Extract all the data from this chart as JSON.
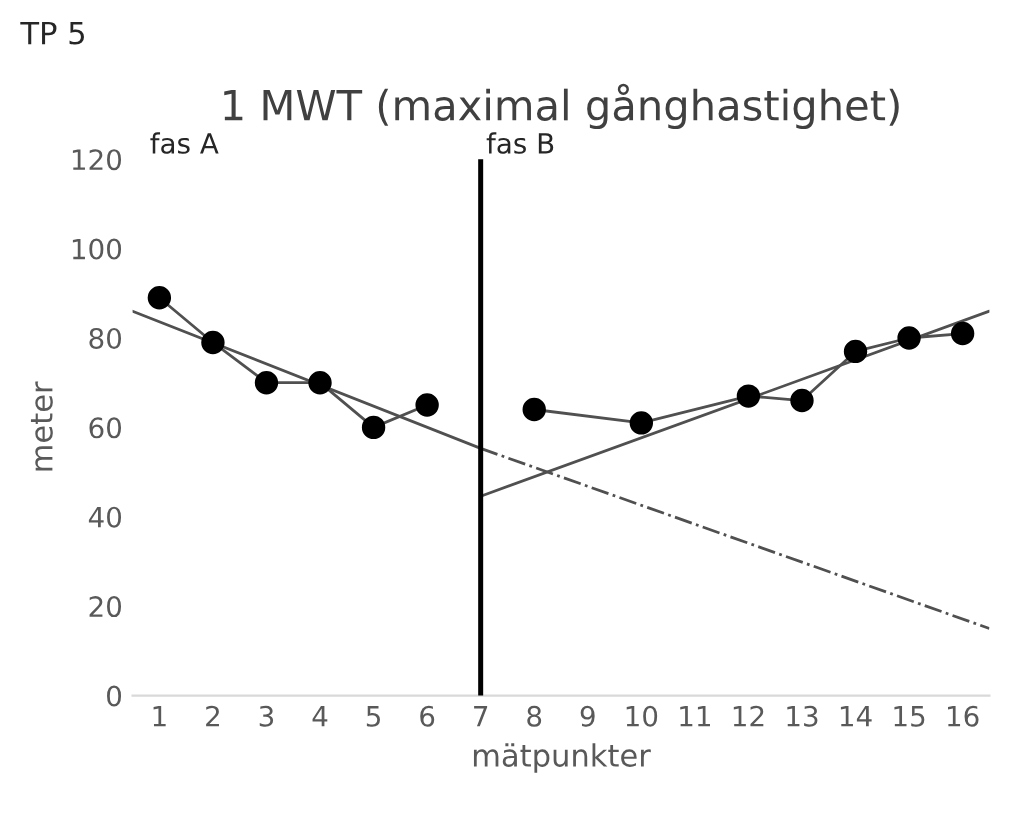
{
  "chart_data": {
    "type": "line",
    "title": "1 MWT (maximal gånghastighet)",
    "xlabel": "mätpunkter",
    "ylabel": "meter",
    "annotations": [
      "TP 5",
      "fas A"
    ],
    "series": [
      {
        "color": "#000000",
        "marker": "circle",
        "line_style": "solid",
        "x": [
          1,
          2,
          3,
          4,
          5,
          6
        ],
        "values": [
          89,
          79,
          70,
          70,
          60,
          65
        ]
      },
      {
        "color": "#000000",
        "marker": "circle",
        "line_style": "solid",
        "x": [
          8,
          10,
          12,
          13,
          14,
          15,
          16
        ],
        "values": [
          64,
          61,
          67,
          66,
          77,
          80,
          81
        ]
      },
      {
        "color": "#404040",
        "line_style": "solid",
        "x": [
          0.5,
          7
        ],
        "values": [
          86,
          55.3
        ]
      },
      {
        "color": "#404040",
        "line_style": "dashdot",
        "x": [
          7,
          16.5
        ],
        "values": [
          55.3,
          15
        ]
      },
      {
        "color": "#404040",
        "line_style": "solid",
        "x": [
          7,
          16.5
        ],
        "values": [
          44.6,
          86
        ]
      }
    ],
    "ref_lines": [
      {
        "axis": "x",
        "value": 7,
        "label": "fas B",
        "color": "#000000"
      }
    ],
    "xlim": [
      0.5,
      16.5
    ],
    "xticks": [
      1,
      2,
      3,
      4,
      5,
      6,
      7,
      8,
      9,
      10,
      11,
      12,
      13,
      14,
      15,
      16
    ],
    "ylim": [
      0,
      120
    ],
    "yticks": [
      0,
      20,
      40,
      60,
      80,
      100,
      120
    ]
  }
}
